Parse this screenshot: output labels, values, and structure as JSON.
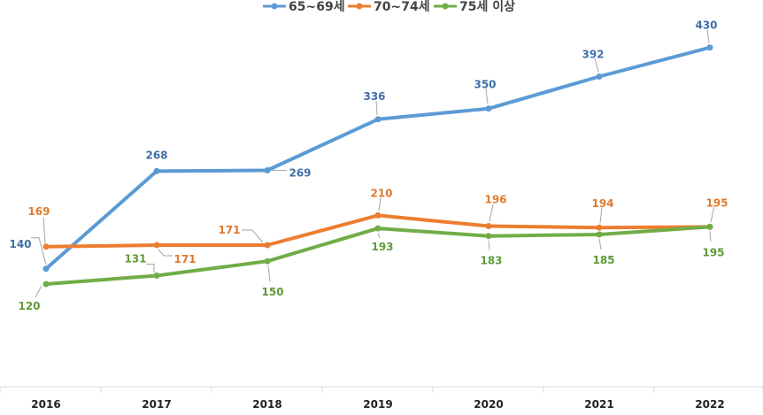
{
  "chart_data": {
    "type": "line",
    "title": "",
    "xlabel": "",
    "ylabel": "",
    "categories": [
      "2016",
      "2017",
      "2018",
      "2019",
      "2020",
      "2021",
      "2022"
    ],
    "ylim": [
      0,
      460
    ],
    "grid": false,
    "legend_position": "top-center",
    "series": [
      {
        "name": "65~69세",
        "color": "#5B9BD5",
        "values": [
          140,
          268,
          269,
          336,
          350,
          392,
          430
        ]
      },
      {
        "name": "70~74세",
        "color": "#ED7D31",
        "values": [
          169,
          171,
          171,
          210,
          196,
          194,
          195
        ]
      },
      {
        "name": "75세 이상",
        "color": "#70AD47",
        "values": [
          120,
          131,
          150,
          193,
          183,
          185,
          195
        ]
      }
    ]
  }
}
